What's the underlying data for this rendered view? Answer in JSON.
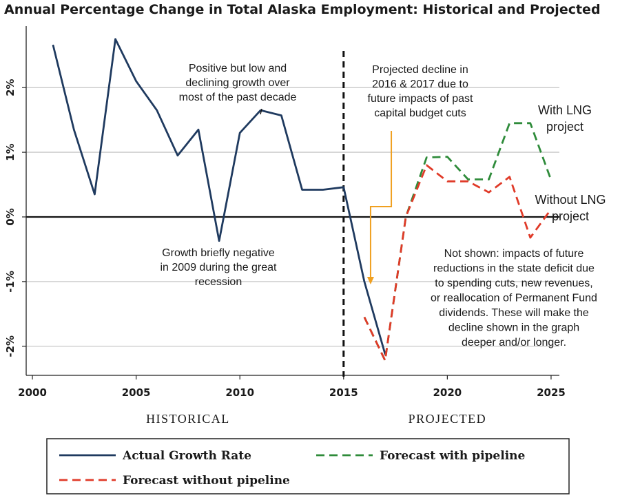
{
  "chart_data": {
    "type": "line",
    "title": "Annual Percentage Change in Total Alaska Employment: Historical and Projected",
    "xlim": [
      1999.7,
      2025.4
    ],
    "ylim": [
      -2.45,
      2.95
    ],
    "x_ticks": [
      2000,
      2005,
      2010,
      2015,
      2020,
      2025
    ],
    "x_tick_labels": [
      "2000",
      "2005",
      "2010",
      "2015",
      "2020",
      "2025"
    ],
    "y_ticks": [
      2,
      1,
      0,
      -1,
      -2
    ],
    "y_tick_labels": [
      "2%",
      "1%",
      "0%",
      "-1%",
      "-2%"
    ],
    "zero_line": true,
    "divider_year": 2015,
    "era_labels": [
      "HISTORICAL",
      "PROJECTED"
    ],
    "series": [
      {
        "name": "Actual Growth Rate",
        "color": "#1f3a5f",
        "style": "solid",
        "x": [
          2001,
          2002,
          2003,
          2004,
          2005,
          2006,
          2007,
          2008,
          2009,
          2010,
          2011,
          2012,
          2013,
          2014,
          2015,
          2016,
          2017
        ],
        "y": [
          2.65,
          1.35,
          0.35,
          2.75,
          2.1,
          1.65,
          0.95,
          1.35,
          -0.37,
          1.3,
          1.65,
          1.57,
          0.42,
          0.42,
          0.46,
          -1.0,
          -2.12
        ]
      },
      {
        "name": "Forecast with pipeline",
        "color": "#2e8b3a",
        "style": "dashed",
        "x": [
          2016,
          2017,
          2018,
          2019,
          2020,
          2021,
          2022,
          2023,
          2024,
          2025
        ],
        "y": [
          -1.55,
          -2.22,
          0.0,
          0.92,
          0.93,
          0.58,
          0.58,
          1.45,
          1.45,
          0.57
        ]
      },
      {
        "name": "Forecast without pipeline",
        "color": "#e03a28",
        "style": "dashed",
        "x": [
          2016,
          2017,
          2018,
          2019,
          2020,
          2021,
          2022,
          2023,
          2024,
          2025
        ],
        "y": [
          -1.55,
          -2.22,
          0.0,
          0.8,
          0.55,
          0.55,
          0.38,
          0.62,
          -0.32,
          0.12
        ]
      }
    ],
    "annotations": [
      {
        "lines": [
          "Positive but low and",
          "declining growth over",
          "most of the past decade"
        ]
      },
      {
        "lines": [
          "Growth briefly negative",
          "in 2009 during the great",
          "recession"
        ]
      },
      {
        "lines": [
          "Projected decline in",
          "2016 & 2017 due to",
          "future impacts of past",
          "capital budget cuts"
        ]
      },
      {
        "lines": [
          "With LNG",
          "project"
        ]
      },
      {
        "lines": [
          "Without LNG",
          "project"
        ]
      },
      {
        "lines": [
          "Not shown:  impacts of future",
          "reductions in the state deficit due",
          "to spending cuts, new revenues,",
          "or reallocation of Permanent Fund",
          "dividends.  These will make the",
          "decline shown in the graph",
          "deeper and/or longer."
        ]
      }
    ],
    "arrow_color": "#f0a020",
    "legend": [
      "Actual Growth Rate",
      "Forecast with pipeline",
      "Forecast without pipeline"
    ]
  }
}
